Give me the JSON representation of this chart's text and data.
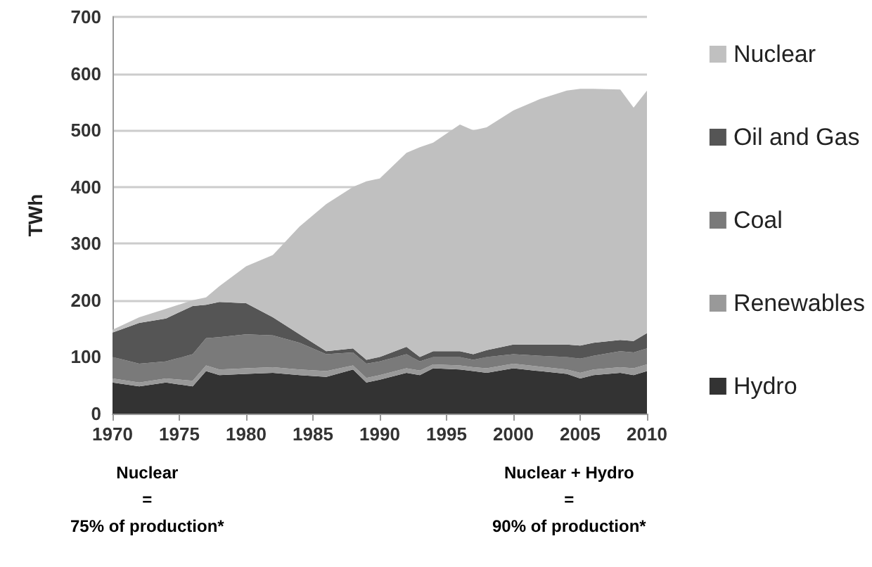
{
  "chart_data": {
    "type": "area",
    "stacked": true,
    "ylabel": "TWh",
    "x": [
      1970,
      1972,
      1974,
      1976,
      1977,
      1978,
      1980,
      1982,
      1984,
      1986,
      1988,
      1989,
      1990,
      1992,
      1993,
      1994,
      1996,
      1997,
      1998,
      2000,
      2002,
      2004,
      2005,
      2006,
      2008,
      2009,
      2010
    ],
    "series": [
      {
        "name": "Hydro",
        "color": "#333333",
        "values": [
          55,
          48,
          55,
          48,
          75,
          68,
          70,
          72,
          68,
          65,
          78,
          55,
          60,
          72,
          68,
          80,
          78,
          75,
          72,
          80,
          75,
          70,
          62,
          68,
          72,
          68,
          75
        ]
      },
      {
        "name": "Renewables",
        "color": "#999999",
        "values": [
          7,
          7,
          7,
          10,
          10,
          10,
          10,
          10,
          10,
          10,
          7,
          8,
          8,
          8,
          8,
          7,
          7,
          7,
          8,
          8,
          8,
          8,
          10,
          10,
          10,
          12,
          12
        ]
      },
      {
        "name": "Coal",
        "color": "#7a7a7a",
        "values": [
          38,
          33,
          30,
          47,
          48,
          57,
          60,
          56,
          47,
          30,
          23,
          25,
          24,
          25,
          16,
          13,
          15,
          13,
          20,
          17,
          19,
          22,
          25,
          24,
          28,
          28,
          28
        ]
      },
      {
        "name": "Oil and Gas",
        "color": "#555555",
        "values": [
          43,
          72,
          76,
          85,
          59,
          62,
          55,
          32,
          15,
          5,
          7,
          7,
          8,
          13,
          8,
          10,
          10,
          10,
          12,
          17,
          20,
          22,
          23,
          23,
          20,
          20,
          27
        ]
      },
      {
        "name": "Nuclear",
        "color": "#c0c0c0",
        "values": [
          5,
          10,
          17,
          10,
          13,
          28,
          65,
          110,
          190,
          260,
          285,
          315,
          315,
          342,
          370,
          368,
          400,
          395,
          393,
          413,
          433,
          448,
          453,
          448,
          442,
          412,
          428
        ]
      }
    ],
    "xlim": [
      1970,
      2010
    ],
    "xticks": [
      1970,
      1975,
      1980,
      1985,
      1990,
      1995,
      2000,
      2005,
      2010
    ],
    "ylim": [
      0,
      700
    ],
    "yticks": [
      0,
      100,
      200,
      300,
      400,
      500,
      600,
      700
    ],
    "grid": "y",
    "legend": "right",
    "annotations": [
      "Nuclear\n=\n75% of production*",
      "Nuclear + Hydro\n=\n90% of production*"
    ]
  }
}
